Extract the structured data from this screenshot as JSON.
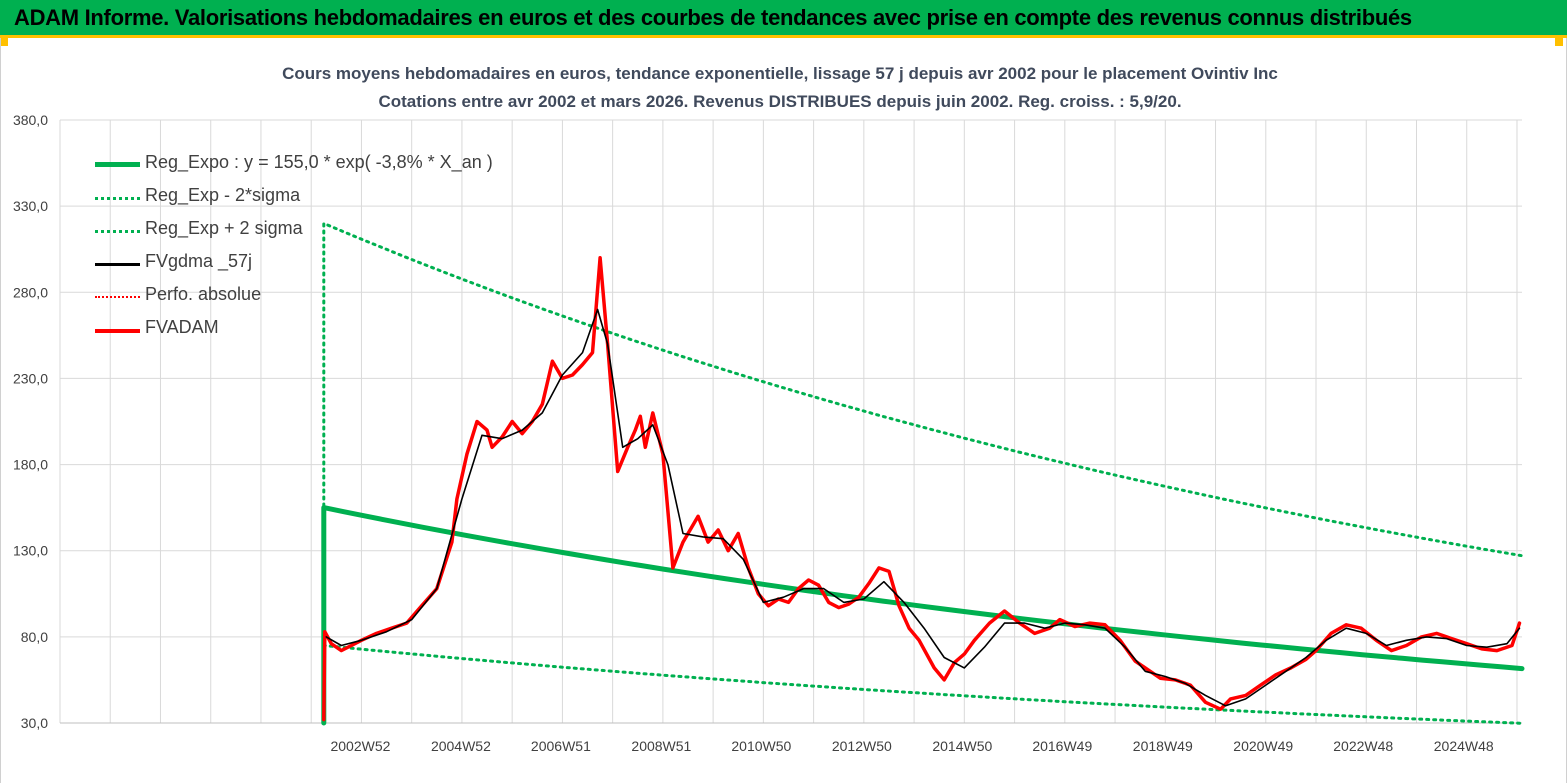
{
  "banner": {
    "title": "ADAM Informe. Valorisations hebdomadaires en euros et des courbes de tendances avec prise en compte des revenus connus distribués",
    "bg_color": "#00b050",
    "accent_color": "#ffc000"
  },
  "chart_data": {
    "type": "line",
    "title_line1": "Cours moyens hebdomadaires en euros, tendance exponentielle, lissage 57 j depuis avr 2002 pour le placement Ovintiv Inc",
    "title_line2": "Cotations entre avr 2002 et mars 2026. Revenus DISTRIBUES depuis juin 2002. Reg. croiss. : 5,9/20.",
    "xlabel": "",
    "ylabel": "",
    "ylim": [
      30,
      380
    ],
    "yticks": [
      "30,0",
      "80,0",
      "130,0",
      "180,0",
      "230,0",
      "280,0",
      "330,0",
      "380,0"
    ],
    "xlim": [
      1997.0,
      2026.1
    ],
    "xtick_labels": [
      "2002W52",
      "2004W52",
      "2006W51",
      "2008W51",
      "2010W50",
      "2012W50",
      "2014W50",
      "2016W49",
      "2018W49",
      "2020W49",
      "2022W48",
      "2024W48"
    ],
    "xtick_years": [
      2002.98,
      2004.98,
      2006.97,
      2008.97,
      2010.96,
      2012.96,
      2014.96,
      2016.95,
      2018.95,
      2020.95,
      2022.94,
      2024.94
    ],
    "grid": true,
    "legend_position": "top-left",
    "legend": [
      {
        "label": "Reg_Expo : y = 155,0 * exp( -3,8% *  X_an )",
        "color": "#00b050",
        "style": "solid-thick"
      },
      {
        "label": "Reg_Exp - 2*sigma",
        "color": "#00b050",
        "style": "dotted"
      },
      {
        "label": "Reg_Exp + 2 sigma",
        "color": "#00b050",
        "style": "dotted"
      },
      {
        "label": "FVgdma _57j",
        "color": "#000000",
        "style": "solid"
      },
      {
        "label": "Perfo. absolue",
        "color": "#ff0000",
        "style": "dotted"
      },
      {
        "label": "FVADAM",
        "color": "#ff0000",
        "style": "solid-thick"
      }
    ],
    "series": [
      {
        "name": "Reg_Expo",
        "x": [
          2002.25,
          2002.25,
          2026.1
        ],
        "values": [
          30,
          155,
          61.6
        ]
      },
      {
        "name": "Reg_Exp - 2*sigma",
        "x": [
          2002.25,
          2002.25,
          2026.1
        ],
        "values": [
          30,
          75,
          29.8
        ]
      },
      {
        "name": "Reg_Exp + 2 sigma",
        "x": [
          2002.25,
          2002.25,
          2026.1
        ],
        "values": [
          30,
          320,
          127.1
        ]
      },
      {
        "name": "FVADAM",
        "x": [
          2002.25,
          2002.27,
          2002.4,
          2002.6,
          2002.8,
          2003.0,
          2003.3,
          2003.6,
          2003.9,
          2004.2,
          2004.5,
          2004.8,
          2004.9,
          2005.1,
          2005.3,
          2005.5,
          2005.6,
          2005.8,
          2006.0,
          2006.2,
          2006.4,
          2006.6,
          2006.8,
          2007.0,
          2007.2,
          2007.4,
          2007.6,
          2007.75,
          2007.9,
          2008.1,
          2008.3,
          2008.45,
          2008.55,
          2008.65,
          2008.8,
          2009.0,
          2009.2,
          2009.4,
          2009.7,
          2009.9,
          2010.1,
          2010.3,
          2010.5,
          2010.7,
          2010.9,
          2011.1,
          2011.3,
          2011.5,
          2011.7,
          2011.9,
          2012.1,
          2012.3,
          2012.5,
          2012.7,
          2012.9,
          2013.1,
          2013.3,
          2013.5,
          2013.7,
          2013.9,
          2014.1,
          2014.4,
          2014.6,
          2014.8,
          2015.0,
          2015.2,
          2015.5,
          2015.8,
          2016.1,
          2016.4,
          2016.7,
          2016.9,
          2017.2,
          2017.5,
          2017.8,
          2018.1,
          2018.4,
          2018.7,
          2018.9,
          2019.2,
          2019.5,
          2019.8,
          2020.1,
          2020.3,
          2020.6,
          2020.9,
          2021.2,
          2021.5,
          2021.8,
          2022.0,
          2022.3,
          2022.6,
          2022.9,
          2023.2,
          2023.5,
          2023.8,
          2024.1,
          2024.4,
          2024.7,
          2025.0,
          2025.3,
          2025.6,
          2025.9,
          2026.05
        ],
        "values": [
          32,
          83,
          76,
          72,
          75,
          78,
          82,
          85,
          88,
          98,
          108,
          135,
          160,
          186,
          205,
          200,
          190,
          196,
          205,
          198,
          205,
          215,
          240,
          230,
          232,
          238,
          245,
          300,
          250,
          176,
          190,
          200,
          208,
          190,
          210,
          186,
          120,
          135,
          150,
          135,
          142,
          130,
          140,
          120,
          105,
          98,
          102,
          100,
          108,
          113,
          110,
          100,
          97,
          99,
          103,
          111,
          120,
          118,
          98,
          85,
          78,
          62,
          55,
          65,
          70,
          78,
          88,
          95,
          88,
          82,
          85,
          90,
          86,
          88,
          87,
          78,
          66,
          60,
          56,
          55,
          52,
          42,
          38,
          44,
          46,
          52,
          58,
          62,
          67,
          72,
          82,
          87,
          85,
          78,
          72,
          75,
          80,
          82,
          79,
          76,
          73,
          72,
          75,
          88
        ]
      },
      {
        "name": "FVgdma _57j",
        "x": [
          2002.3,
          2002.6,
          2003.0,
          2003.5,
          2004.0,
          2004.5,
          2005.0,
          2005.4,
          2005.8,
          2006.2,
          2006.6,
          2007.0,
          2007.4,
          2007.7,
          2007.9,
          2008.2,
          2008.5,
          2008.8,
          2009.1,
          2009.4,
          2009.8,
          2010.2,
          2010.6,
          2011.0,
          2011.4,
          2011.8,
          2012.2,
          2012.6,
          2013.0,
          2013.4,
          2013.8,
          2014.2,
          2014.6,
          2015.0,
          2015.4,
          2015.8,
          2016.2,
          2016.6,
          2017.0,
          2017.4,
          2017.8,
          2018.2,
          2018.6,
          2019.0,
          2019.4,
          2019.8,
          2020.2,
          2020.6,
          2021.0,
          2021.4,
          2021.8,
          2022.2,
          2022.6,
          2023.0,
          2023.4,
          2023.8,
          2024.2,
          2024.6,
          2025.0,
          2025.4,
          2025.8,
          2026.05
        ],
        "values": [
          80,
          75,
          78,
          83,
          90,
          108,
          160,
          197,
          195,
          200,
          210,
          232,
          245,
          270,
          250,
          190,
          195,
          203,
          180,
          140,
          138,
          137,
          125,
          100,
          103,
          108,
          108,
          100,
          102,
          112,
          100,
          85,
          68,
          62,
          74,
          88,
          88,
          85,
          88,
          87,
          85,
          74,
          60,
          57,
          53,
          46,
          40,
          44,
          52,
          60,
          68,
          78,
          85,
          82,
          75,
          78,
          80,
          79,
          75,
          74,
          76,
          85
        ]
      }
    ]
  }
}
